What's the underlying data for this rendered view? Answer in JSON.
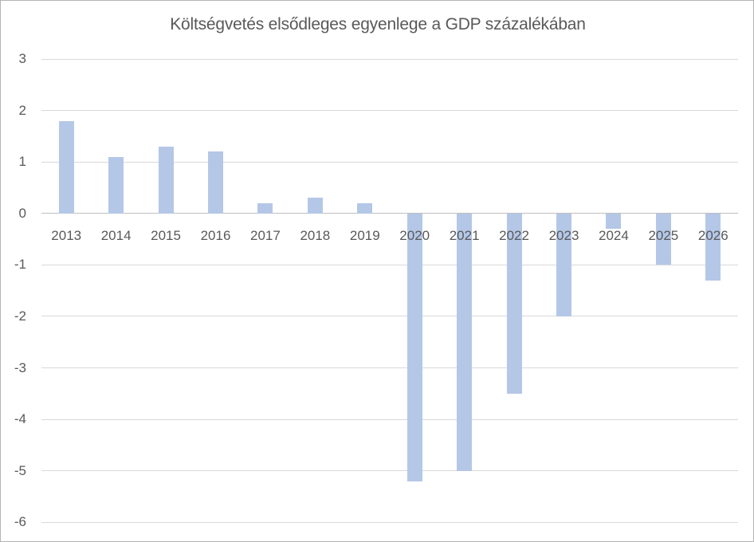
{
  "title": "Költségvetés elsődleges egyenlege a GDP százalékában",
  "colors": {
    "bar": "#b4c7e7",
    "gridline": "#d9d9d9",
    "zero_line": "#bfbfbf",
    "text": "#595959",
    "border": "#b3b3b3",
    "background": "#ffffff"
  },
  "chart_data": {
    "type": "bar",
    "title": "Költségvetés elsődleges egyenlege a GDP százalékában",
    "categories": [
      "2013",
      "2014",
      "2015",
      "2016",
      "2017",
      "2018",
      "2019",
      "2020",
      "2021",
      "2022",
      "2023",
      "2024",
      "2025",
      "2026"
    ],
    "values": [
      1.8,
      1.1,
      1.3,
      1.2,
      0.2,
      0.3,
      0.2,
      -5.2,
      -5.0,
      -3.5,
      -2.0,
      -0.3,
      -1.0,
      -1.3
    ],
    "xlabel": "",
    "ylabel": "",
    "ylim": [
      -6,
      3
    ],
    "yticks": [
      3,
      2,
      1,
      0,
      -1,
      -2,
      -3,
      -4,
      -5,
      -6
    ],
    "grid": true,
    "legend": false,
    "x_axis_labels_position": "below zero line"
  }
}
